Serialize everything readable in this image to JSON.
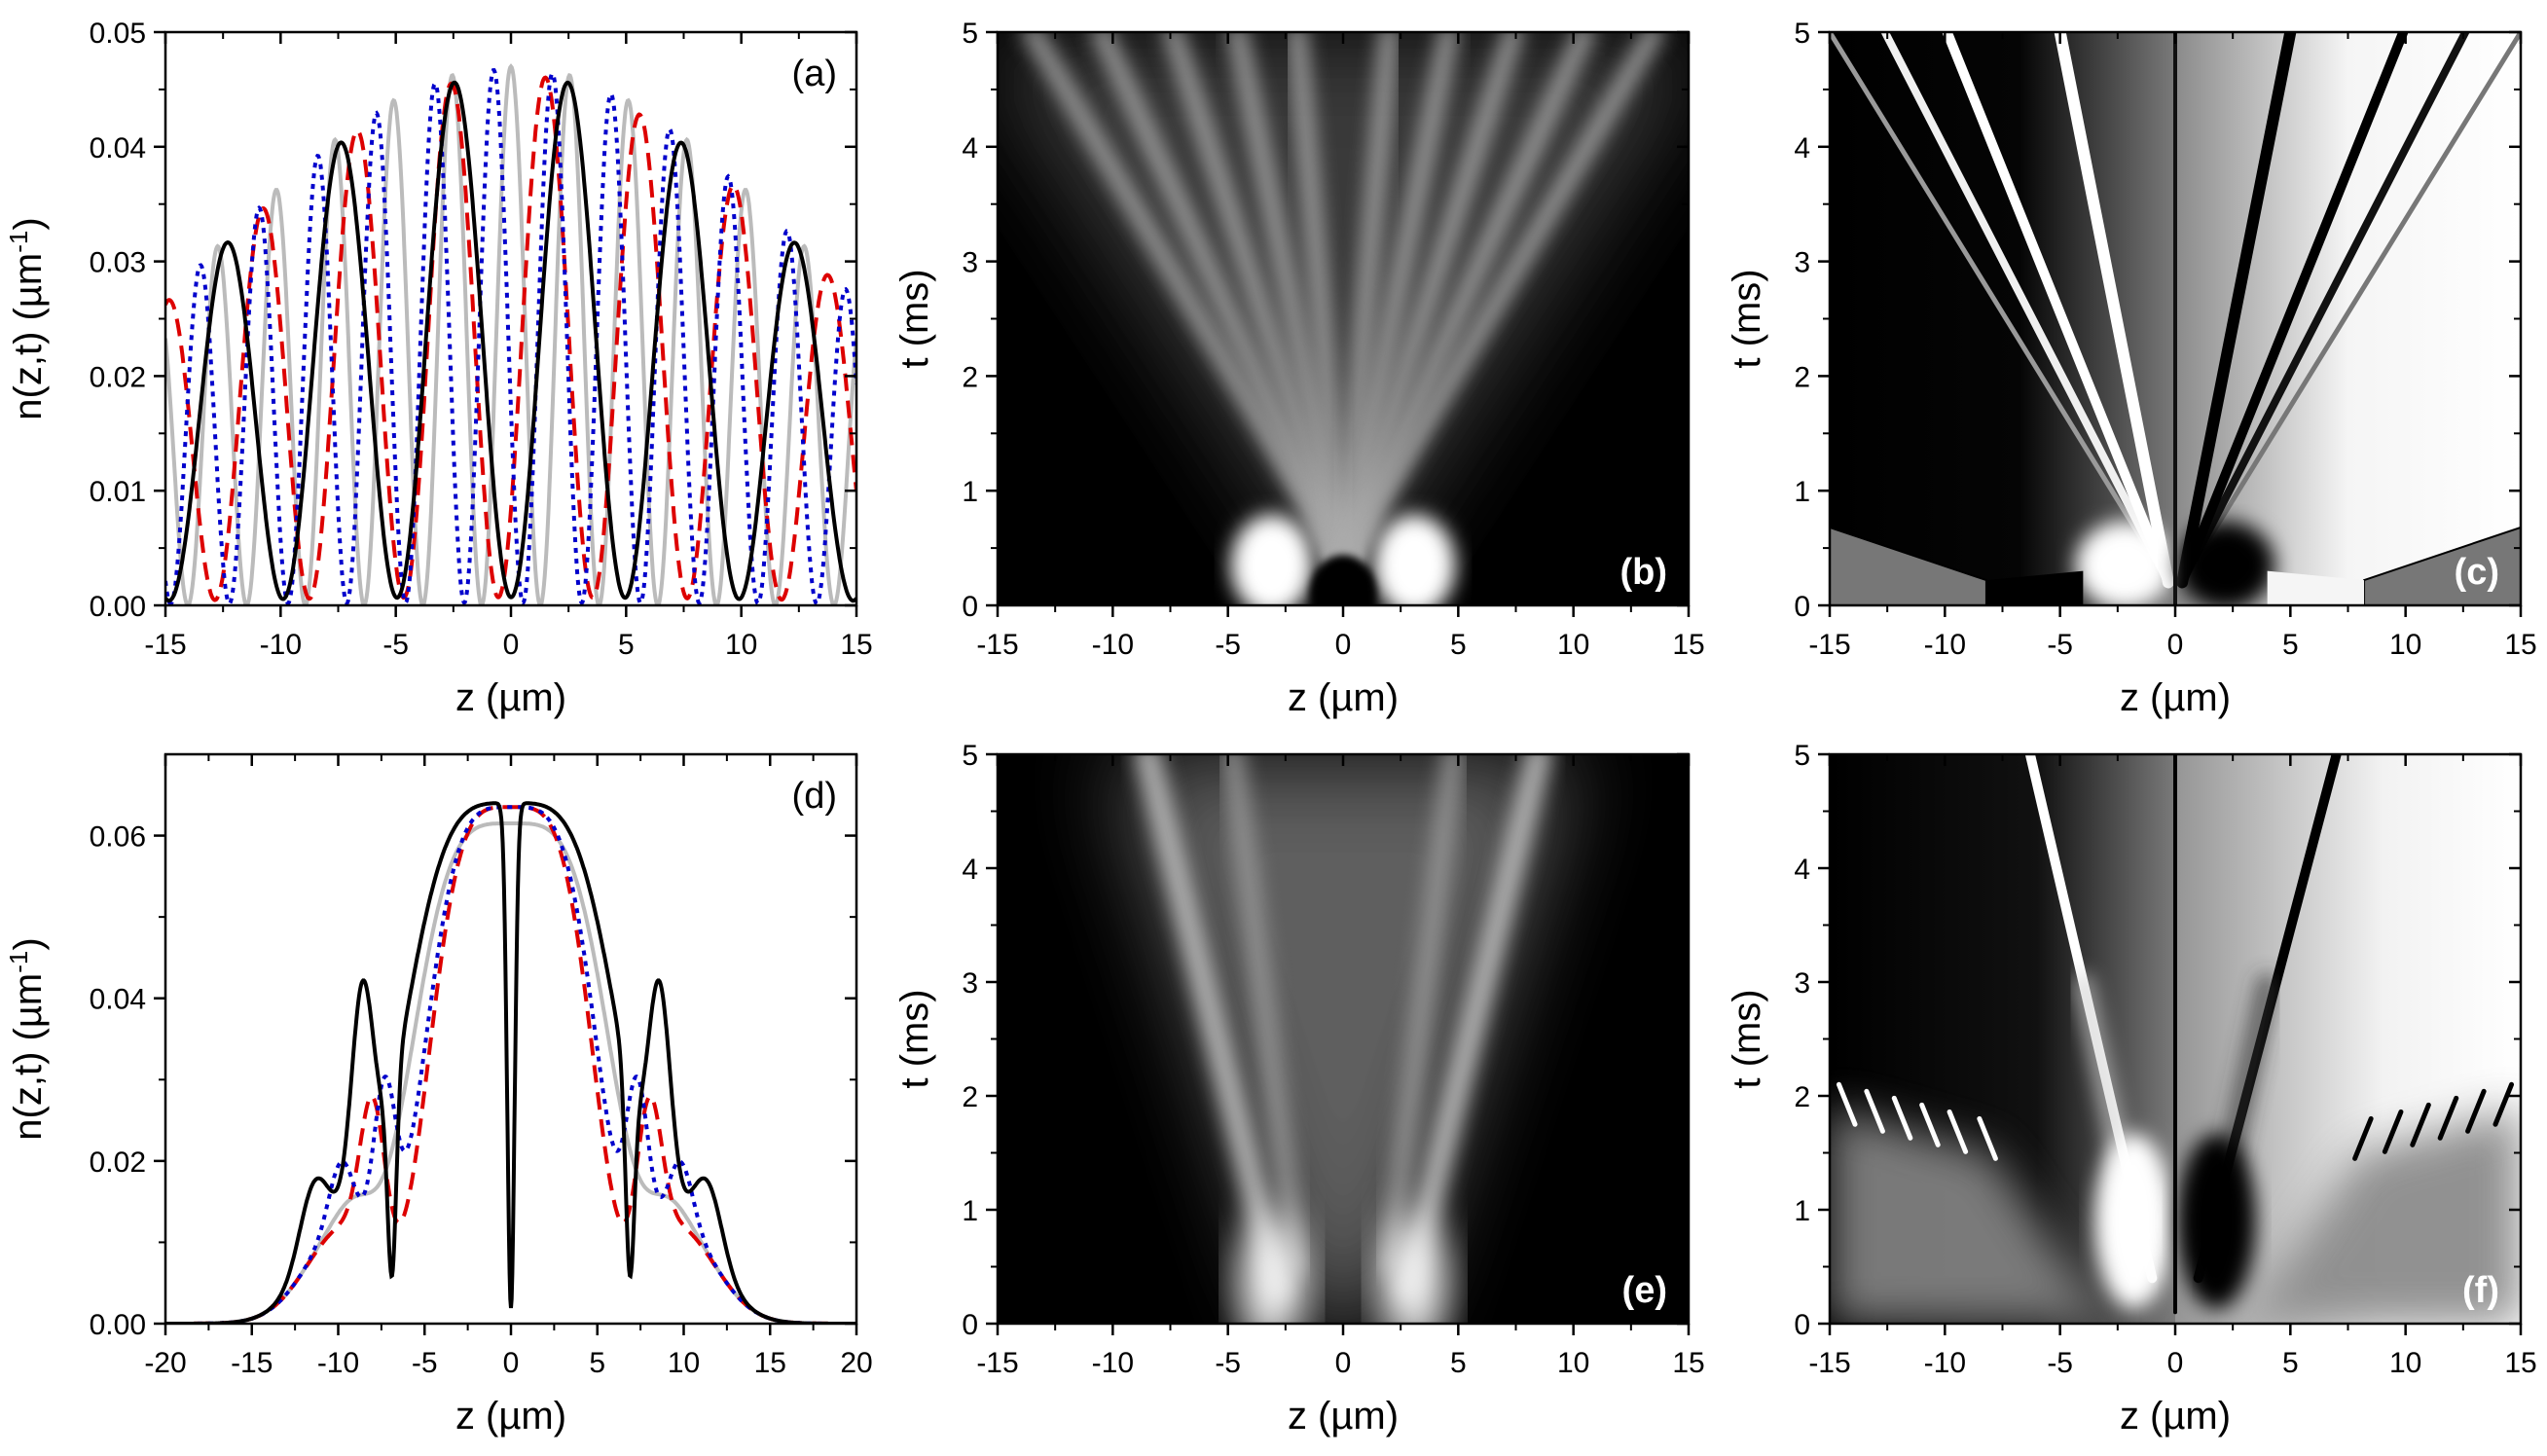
{
  "figure": {
    "panels": [
      {
        "id": "a",
        "label": "(a)",
        "label_color": "#000000"
      },
      {
        "id": "b",
        "label": "(b)",
        "label_color": "#ffffff"
      },
      {
        "id": "c",
        "label": "(c)",
        "label_color": "#ffffff"
      },
      {
        "id": "d",
        "label": "(d)",
        "label_color": "#000000"
      },
      {
        "id": "e",
        "label": "(e)",
        "label_color": "#ffffff"
      },
      {
        "id": "f",
        "label": "(f)",
        "label_color": "#ffffff"
      }
    ],
    "xlabel": "z  (µm)",
    "ylabel_density_prefix": "n(z,t)  (µm",
    "ylabel_density_sup": "-1",
    "ylabel_density_suffix": ")",
    "ylabel_time": "t  (ms)"
  },
  "chart_data": [
    {
      "panel": "a",
      "type": "line",
      "xlim": [
        -15,
        15
      ],
      "ylim": [
        0,
        0.05
      ],
      "x_ticks": [
        -15,
        -10,
        -5,
        0,
        5,
        10,
        15
      ],
      "y_ticks": [
        "0.00",
        "0.01",
        "0.02",
        "0.03",
        "0.04",
        "0.05"
      ],
      "series": [
        {
          "color": "#bbbbbb",
          "dash": "solid",
          "envelope_peak": 0.047,
          "envelope_width": 20,
          "period": 2.55,
          "phase": 0,
          "fringe_visibility": 1.0
        },
        {
          "color": "#dd0000",
          "dash": "dashed",
          "envelope_peak": 0.047,
          "envelope_width": 20,
          "period": 4.1,
          "phase": 1.5,
          "fringe_visibility": 0.97
        },
        {
          "color": "#0000cc",
          "dash": "dotted",
          "envelope_peak": 0.047,
          "envelope_width": 20,
          "period": 2.55,
          "phase": 1.8,
          "fringe_visibility": 0.99
        },
        {
          "color": "#000000",
          "dash": "solid",
          "envelope_peak": 0.047,
          "envelope_width": 20,
          "period": 4.95,
          "phase": 2.48,
          "fringe_visibility": 0.97
        }
      ]
    },
    {
      "panel": "b",
      "type": "heatmap",
      "xlim": [
        -15,
        15
      ],
      "ylim": [
        0,
        5
      ],
      "x_ticks": [
        -15,
        -10,
        -5,
        0,
        5,
        10,
        15
      ],
      "y_ticks": [
        0,
        1,
        2,
        3,
        4,
        5
      ],
      "colormap": "grayscale"
    },
    {
      "panel": "c",
      "type": "heatmap",
      "xlim": [
        -15,
        15
      ],
      "ylim": [
        0,
        5
      ],
      "x_ticks": [
        -15,
        -10,
        -5,
        0,
        5,
        10,
        15
      ],
      "y_ticks": [
        0,
        1,
        2,
        3,
        4,
        5
      ],
      "colormap": "grayscale"
    },
    {
      "panel": "d",
      "type": "line",
      "xlim": [
        -20,
        20
      ],
      "ylim": [
        0,
        0.07
      ],
      "x_ticks": [
        -20,
        -15,
        -10,
        -5,
        0,
        5,
        10,
        15,
        20
      ],
      "y_ticks": [
        "0.00",
        "0.02",
        "0.04",
        "0.06"
      ],
      "series": [
        {
          "color": "#bbbbbb",
          "dash": "solid",
          "center_peak": 0.0615,
          "center_width": 6.3,
          "sidelobes": [
            [
              8.9,
              0.003,
              1.5
            ]
          ],
          "notch": null
        },
        {
          "color": "#dd0000",
          "dash": "dashed",
          "center_peak": 0.0635,
          "center_width": 5.2,
          "sidelobes": [
            [
              8.0,
              0.018,
              1.0
            ]
          ],
          "notch": [
            5.5,
            0.006
          ]
        },
        {
          "color": "#0000cc",
          "dash": "dotted",
          "center_peak": 0.0635,
          "center_width": 5.5,
          "sidelobes": [
            [
              7.3,
              0.02,
              0.9
            ],
            [
              9.8,
              0.008,
              1.0
            ]
          ],
          "notch": [
            5.7,
            0.006
          ]
        },
        {
          "color": "#000000",
          "dash": "solid",
          "center_peak": 0.064,
          "center_width": 6.8,
          "sidelobes": [
            [
              8.6,
              0.026,
              0.9
            ],
            [
              11.4,
              0.009,
              1.2
            ]
          ],
          "notch": [
            0.0,
            0.3
          ],
          "notch2": [
            6.9,
            0.0058
          ]
        }
      ]
    },
    {
      "panel": "e",
      "type": "heatmap",
      "xlim": [
        -15,
        15
      ],
      "ylim": [
        0,
        5
      ],
      "x_ticks": [
        -15,
        -10,
        -5,
        0,
        5,
        10,
        15
      ],
      "y_ticks": [
        0,
        1,
        2,
        3,
        4,
        5
      ],
      "colormap": "grayscale"
    },
    {
      "panel": "f",
      "type": "heatmap",
      "xlim": [
        -15,
        15
      ],
      "ylim": [
        0,
        5
      ],
      "x_ticks": [
        -15,
        -10,
        -5,
        0,
        5,
        10,
        15
      ],
      "y_ticks": [
        0,
        1,
        2,
        3,
        4,
        5
      ],
      "colormap": "grayscale"
    }
  ]
}
